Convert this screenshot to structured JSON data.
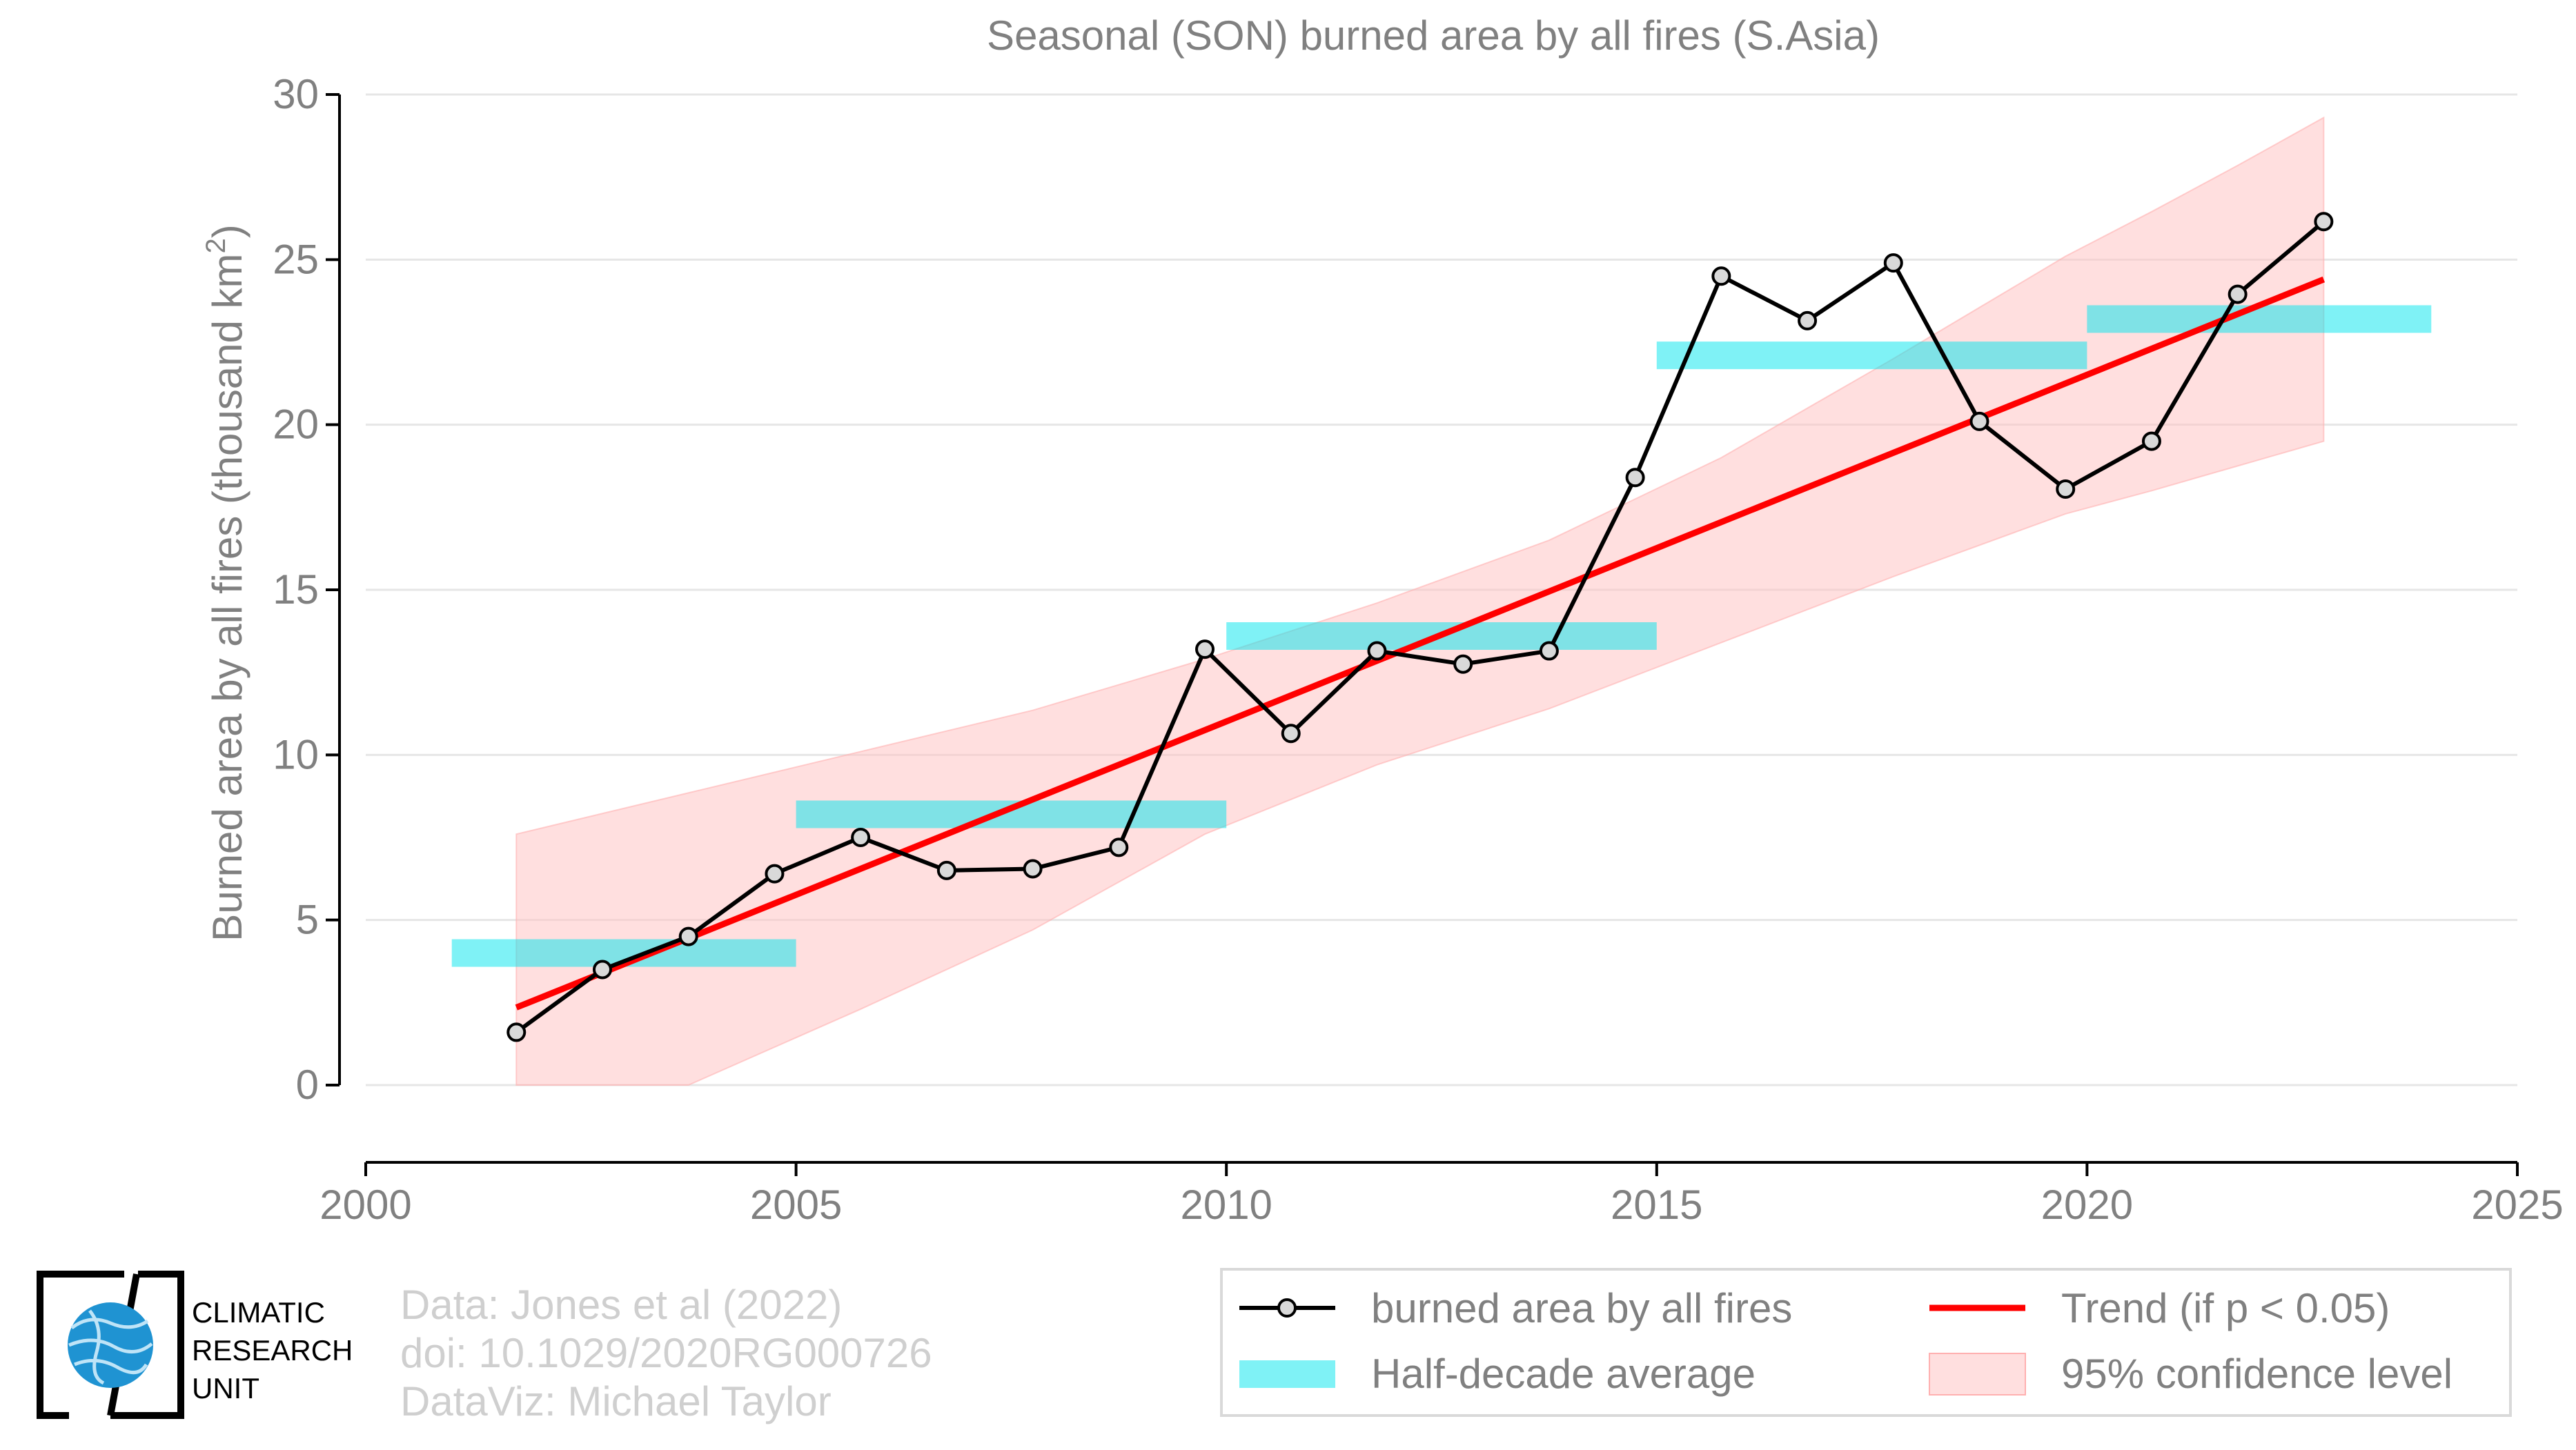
{
  "chart_data": {
    "type": "line",
    "title": "Seasonal (SON) burned area by all fires (S.Asia)",
    "xlabel": "",
    "ylabel": "Burned area by all fires (thousand km",
    "ylabel_sup": "2",
    "ylabel_close": ")",
    "xlim": [
      2000,
      2025
    ],
    "ylim": [
      0,
      30
    ],
    "xticks": [
      2000,
      2005,
      2010,
      2015,
      2020,
      2025
    ],
    "yticks": [
      0,
      5,
      10,
      15,
      20,
      25,
      30
    ],
    "grid": "horizontal",
    "series": [
      {
        "name": "burned area by all fires",
        "color": "#000000",
        "x": [
          2001.75,
          2002.75,
          2003.75,
          2004.75,
          2005.75,
          2006.75,
          2007.75,
          2008.75,
          2009.75,
          2010.75,
          2011.75,
          2012.75,
          2013.75,
          2014.75,
          2015.75,
          2016.75,
          2017.75,
          2018.75,
          2019.75,
          2020.75,
          2021.75,
          2022.75
        ],
        "values": [
          1.6,
          3.5,
          4.5,
          6.4,
          7.5,
          6.5,
          6.55,
          7.2,
          13.2,
          10.65,
          13.15,
          12.75,
          13.15,
          18.4,
          24.5,
          23.15,
          24.9,
          20.1,
          18.05,
          19.5,
          23.95,
          26.15
        ]
      },
      {
        "name": "Half-decade average",
        "color": "#00e5ee",
        "segments": [
          {
            "x": [
              2001,
              2005
            ],
            "value": 4.0
          },
          {
            "x": [
              2005,
              2010
            ],
            "value": 8.2
          },
          {
            "x": [
              2010,
              2015
            ],
            "value": 13.6
          },
          {
            "x": [
              2015,
              2020
            ],
            "value": 22.1
          },
          {
            "x": [
              2020,
              2024
            ],
            "value": 23.2
          }
        ]
      },
      {
        "name": "Trend (if p < 0.05)",
        "color": "#ff0000",
        "x": [
          2001.75,
          2022.75
        ],
        "values": [
          2.35,
          24.4
        ]
      },
      {
        "name": "95% confidence level",
        "color": "#ffc0c0",
        "x": [
          2001.75,
          2003.75,
          2005.75,
          2007.75,
          2009.75,
          2011.75,
          2013.75,
          2015.75,
          2017.75,
          2019.75,
          2020.75,
          2021.75,
          2022.75
        ],
        "upper": [
          7.6,
          8.85,
          10.1,
          11.35,
          12.9,
          14.6,
          16.5,
          19.0,
          22.0,
          25.1,
          26.45,
          27.85,
          29.3
        ],
        "lower": [
          0.0,
          0.0,
          2.3,
          4.7,
          7.6,
          9.7,
          11.4,
          13.4,
          15.4,
          17.3,
          18.0,
          18.75,
          19.5
        ]
      }
    ],
    "legend": {
      "placement": "bottom-right",
      "items": [
        "burned area by all fires",
        "Trend (if p < 0.05)",
        "Half-decade average",
        "95% confidence level"
      ]
    }
  },
  "credits": {
    "data": "Data: Jones et al (2022)",
    "doi": "doi: 10.1029/2020RG000726",
    "dataviz": "DataViz: Michael Taylor"
  },
  "logo": {
    "line1": "CLIMATIC",
    "line2": "RESEARCH",
    "line3": "UNIT"
  },
  "colors": {
    "text": "#808080",
    "grid": "#e6e6e6",
    "line": "#000000",
    "marker_fill": "#d9d9d9",
    "trend": "#ff0000",
    "band": "#ffc0c0",
    "half_decade": "#00e5ee",
    "credit": "#cfcfcf",
    "logo_blue": "#1f93d2"
  }
}
